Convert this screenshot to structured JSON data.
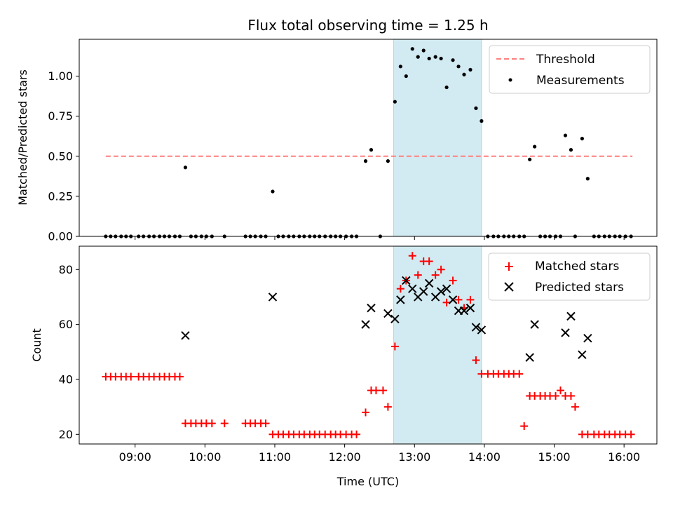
{
  "chart_data": {
    "type": "scatter",
    "title": "Flux total observing time = 1.25 h",
    "xlabel": "Time (UTC)",
    "x_ticks": [
      "09:00",
      "10:00",
      "11:00",
      "12:00",
      "13:00",
      "14:00",
      "15:00",
      "16:00"
    ],
    "x_range_hours": [
      8.2,
      16.47
    ],
    "shaded_interval_hours": [
      12.7,
      13.96
    ],
    "shade_color": "#add8e6",
    "panels": [
      {
        "ylabel": "Matched/Predicted stars",
        "ylim": [
          0,
          1.23
        ],
        "y_ticks": [
          "0.00",
          "0.25",
          "0.50",
          "0.75",
          "1.00"
        ],
        "legend_position": "upper right",
        "threshold": {
          "name": "Threshold",
          "value": 0.5,
          "x_range_hours": [
            8.58,
            16.12
          ],
          "color": "#ff7f7f"
        },
        "measurements": {
          "name": "Measurements",
          "color": "#000000",
          "x": [
            8.58,
            8.65,
            8.72,
            8.8,
            8.87,
            8.94,
            9.05,
            9.12,
            9.2,
            9.27,
            9.35,
            9.42,
            9.49,
            9.57,
            9.64,
            9.72,
            9.8,
            9.87,
            9.95,
            10.02,
            10.1,
            10.28,
            10.58,
            10.65,
            10.72,
            10.8,
            10.87,
            10.97,
            11.05,
            11.12,
            11.2,
            11.27,
            11.35,
            11.42,
            11.5,
            11.57,
            11.64,
            11.72,
            11.8,
            11.87,
            11.94,
            12.02,
            12.1,
            12.17,
            12.3,
            12.38,
            12.51,
            12.62,
            12.72,
            12.8,
            12.88,
            12.97,
            13.05,
            13.13,
            13.21,
            13.3,
            13.38,
            13.46,
            13.55,
            13.63,
            13.71,
            13.8,
            13.88,
            13.96,
            14.05,
            14.13,
            14.2,
            14.28,
            14.35,
            14.42,
            14.5,
            14.57,
            14.65,
            14.72,
            14.8,
            14.87,
            14.94,
            15.02,
            15.09,
            15.16,
            15.24,
            15.3,
            15.4,
            15.48,
            15.57,
            15.64,
            15.72,
            15.79,
            15.87,
            15.94,
            16.02,
            16.1
          ],
          "y": [
            0,
            0,
            0,
            0,
            0,
            0,
            0,
            0,
            0,
            0,
            0,
            0,
            0,
            0,
            0,
            0.43,
            0,
            0,
            0,
            0,
            0,
            0,
            0,
            0,
            0,
            0,
            0,
            0.28,
            0,
            0,
            0,
            0,
            0,
            0,
            0,
            0,
            0,
            0,
            0,
            0,
            0,
            0,
            0,
            0,
            0.47,
            0.54,
            0,
            0.47,
            0.84,
            1.06,
            1.0,
            1.17,
            1.12,
            1.16,
            1.11,
            1.12,
            1.11,
            0.93,
            1.1,
            1.06,
            1.01,
            1.04,
            0.8,
            0.72,
            0,
            0,
            0,
            0,
            0,
            0,
            0,
            0,
            0.48,
            0.56,
            0,
            0,
            0,
            0,
            0,
            0.63,
            0.54,
            0,
            0.61,
            0.36,
            0,
            0,
            0,
            0,
            0,
            0,
            0,
            0
          ]
        }
      },
      {
        "ylabel": "Count",
        "ylim": [
          16.5,
          88.5
        ],
        "y_ticks": [
          "20",
          "40",
          "60",
          "80"
        ],
        "legend_position": "upper right",
        "matched": {
          "name": "Matched stars",
          "color": "#ff0000",
          "x": [
            8.58,
            8.65,
            8.72,
            8.8,
            8.87,
            8.94,
            9.05,
            9.12,
            9.2,
            9.27,
            9.35,
            9.42,
            9.49,
            9.57,
            9.64,
            9.72,
            9.8,
            9.87,
            9.95,
            10.02,
            10.1,
            10.28,
            10.58,
            10.65,
            10.72,
            10.8,
            10.87,
            10.97,
            11.05,
            11.12,
            11.2,
            11.27,
            11.35,
            11.42,
            11.5,
            11.57,
            11.64,
            11.72,
            11.8,
            11.87,
            11.94,
            12.02,
            12.1,
            12.17,
            12.3,
            12.38,
            12.45,
            12.55,
            12.62,
            12.72,
            12.8,
            12.88,
            12.97,
            13.05,
            13.13,
            13.21,
            13.3,
            13.38,
            13.46,
            13.55,
            13.63,
            13.71,
            13.8,
            13.88,
            13.96,
            14.05,
            14.13,
            14.2,
            14.28,
            14.35,
            14.42,
            14.5,
            14.57,
            14.65,
            14.72,
            14.8,
            14.87,
            14.94,
            15.02,
            15.09,
            15.16,
            15.24,
            15.3,
            15.4,
            15.48,
            15.57,
            15.64,
            15.72,
            15.79,
            15.87,
            15.94,
            16.02,
            16.1
          ],
          "y": [
            41,
            41,
            41,
            41,
            41,
            41,
            41,
            41,
            41,
            41,
            41,
            41,
            41,
            41,
            41,
            24,
            24,
            24,
            24,
            24,
            24,
            24,
            24,
            24,
            24,
            24,
            24,
            20,
            20,
            20,
            20,
            20,
            20,
            20,
            20,
            20,
            20,
            20,
            20,
            20,
            20,
            20,
            20,
            20,
            28,
            36,
            36,
            36,
            30,
            52,
            73,
            76,
            85,
            78,
            83,
            83,
            78,
            80,
            68,
            76,
            69,
            66,
            69,
            47,
            42,
            42,
            42,
            42,
            42,
            42,
            42,
            42,
            23,
            34,
            34,
            34,
            34,
            34,
            34,
            36,
            34,
            34,
            30,
            20,
            20,
            20,
            20,
            20,
            20,
            20,
            20,
            20,
            20
          ]
        },
        "predicted": {
          "name": "Predicted stars",
          "color": "#000000",
          "x": [
            9.72,
            10.97,
            12.3,
            12.38,
            12.62,
            12.72,
            12.8,
            12.88,
            12.97,
            13.05,
            13.13,
            13.21,
            13.3,
            13.38,
            13.46,
            13.55,
            13.63,
            13.71,
            13.8,
            13.88,
            13.96,
            14.65,
            14.72,
            15.16,
            15.24,
            15.4,
            15.48
          ],
          "y": [
            56,
            70,
            60,
            66,
            64,
            62,
            69,
            76,
            73,
            70,
            72,
            75,
            70,
            72,
            73,
            69,
            65,
            65,
            66,
            59,
            58,
            48,
            60,
            57,
            63,
            49,
            55
          ]
        }
      }
    ]
  }
}
